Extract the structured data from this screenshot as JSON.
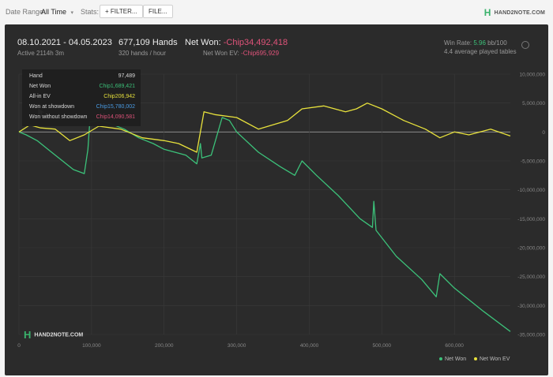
{
  "toolbar": {
    "date_range_label": "Date Range:",
    "date_range_value": "All Time",
    "stats_label": "Stats:",
    "filter_button": "+ FILTER...",
    "file_button": "FILE...",
    "brand": "HAND2NOTE.COM"
  },
  "summary": {
    "date_range": "08.10.2021 - 04.05.2023",
    "active": "Active 2114h 3m",
    "hands": "677,109 Hands",
    "hands_rate": "320 hands / hour",
    "net_won_label": "Net Won:",
    "net_won_value": "-Chip34,492,418",
    "net_won_ev_label": "Net Won EV:",
    "net_won_ev_value": "-Chip695,929",
    "win_rate_label": "Win Rate:",
    "win_rate_value": "5.96",
    "win_rate_unit": "bb/100",
    "avg_tables": "4.4 average played tables"
  },
  "tooltip": {
    "rows": [
      {
        "label": "Hand",
        "value": "97,489",
        "color": "#dddddd"
      },
      {
        "label": "Net Won",
        "value": "Chip1,689,421",
        "color": "#3cc27a"
      },
      {
        "label": "All-in EV",
        "value": "Chip206,942",
        "color": "#e8e23c"
      },
      {
        "label": "Won at showdown",
        "value": "Chip15,780,002",
        "color": "#4a9ee8"
      },
      {
        "label": "Won without showdown",
        "value": "Chip14,090,581",
        "color": "#e0537a"
      }
    ]
  },
  "watermark": "HAND2NOTE.COM",
  "chart_data": {
    "type": "line",
    "xlim": [
      0,
      677109
    ],
    "ylim": [
      -35000000,
      10000000
    ],
    "x_ticks": [
      0,
      100000,
      200000,
      300000,
      400000,
      500000,
      600000
    ],
    "x_tick_labels": [
      "0",
      "100,000",
      "200,000",
      "300,000",
      "400,000",
      "500,000",
      "600,000"
    ],
    "y_ticks": [
      10000000,
      5000000,
      0,
      -5000000,
      -10000000,
      -15000000,
      -20000000,
      -25000000,
      -30000000,
      -35000000
    ],
    "y_tick_labels": [
      "10,000,000",
      "5,000,000",
      "0",
      "-5,000,000",
      "-10,000,000",
      "-15,000,000",
      "-20,000,000",
      "-25,000,000",
      "-30,000,000",
      "-35,000,000"
    ],
    "grid": true,
    "legend_position": "bottom-right",
    "series": [
      {
        "name": "Net Won",
        "color": "#3cc27a",
        "x": [
          0,
          10000,
          25000,
          45000,
          60000,
          75000,
          90000,
          95000,
          97489,
          110000,
          125000,
          145000,
          165000,
          185000,
          200000,
          215000,
          230000,
          245000,
          250000,
          252000,
          265000,
          280000,
          290000,
          300000,
          330000,
          360000,
          380000,
          390000,
          410000,
          440000,
          470000,
          487000,
          489000,
          492000,
          520000,
          555000,
          575000,
          580000,
          600000,
          640000,
          677109
        ],
        "values": [
          0,
          -500000,
          -1500000,
          -3500000,
          -5000000,
          -6500000,
          -7200000,
          -3000000,
          1689421,
          2000000,
          1500000,
          500000,
          -1000000,
          -2000000,
          -3000000,
          -3500000,
          -4000000,
          -5500000,
          -2000000,
          -4500000,
          -4000000,
          2500000,
          2000000,
          0,
          -3500000,
          -6000000,
          -7500000,
          -5000000,
          -7500000,
          -11000000,
          -15000000,
          -16500000,
          -12000000,
          -17000000,
          -21500000,
          -25500000,
          -28500000,
          -24500000,
          -27000000,
          -31000000,
          -34492418
        ]
      },
      {
        "name": "Net Won  EV",
        "color": "#e8e23c",
        "x": [
          0,
          15000,
          30000,
          50000,
          70000,
          90000,
          110000,
          140000,
          170000,
          200000,
          220000,
          245000,
          255000,
          270000,
          300000,
          330000,
          370000,
          390000,
          420000,
          450000,
          465000,
          480000,
          500000,
          530000,
          560000,
          580000,
          600000,
          620000,
          650000,
          677109
        ],
        "values": [
          0,
          1200000,
          700000,
          500000,
          -1500000,
          -500000,
          1000000,
          500000,
          -1000000,
          -1500000,
          -2000000,
          -3500000,
          3500000,
          3000000,
          2500000,
          500000,
          2000000,
          4000000,
          4500000,
          3500000,
          4000000,
          5000000,
          4000000,
          2000000,
          500000,
          -1000000,
          0,
          -500000,
          500000,
          -695929
        ]
      }
    ]
  },
  "legend": {
    "net_won": "Net Won",
    "net_won_ev": "Net Won  EV"
  }
}
